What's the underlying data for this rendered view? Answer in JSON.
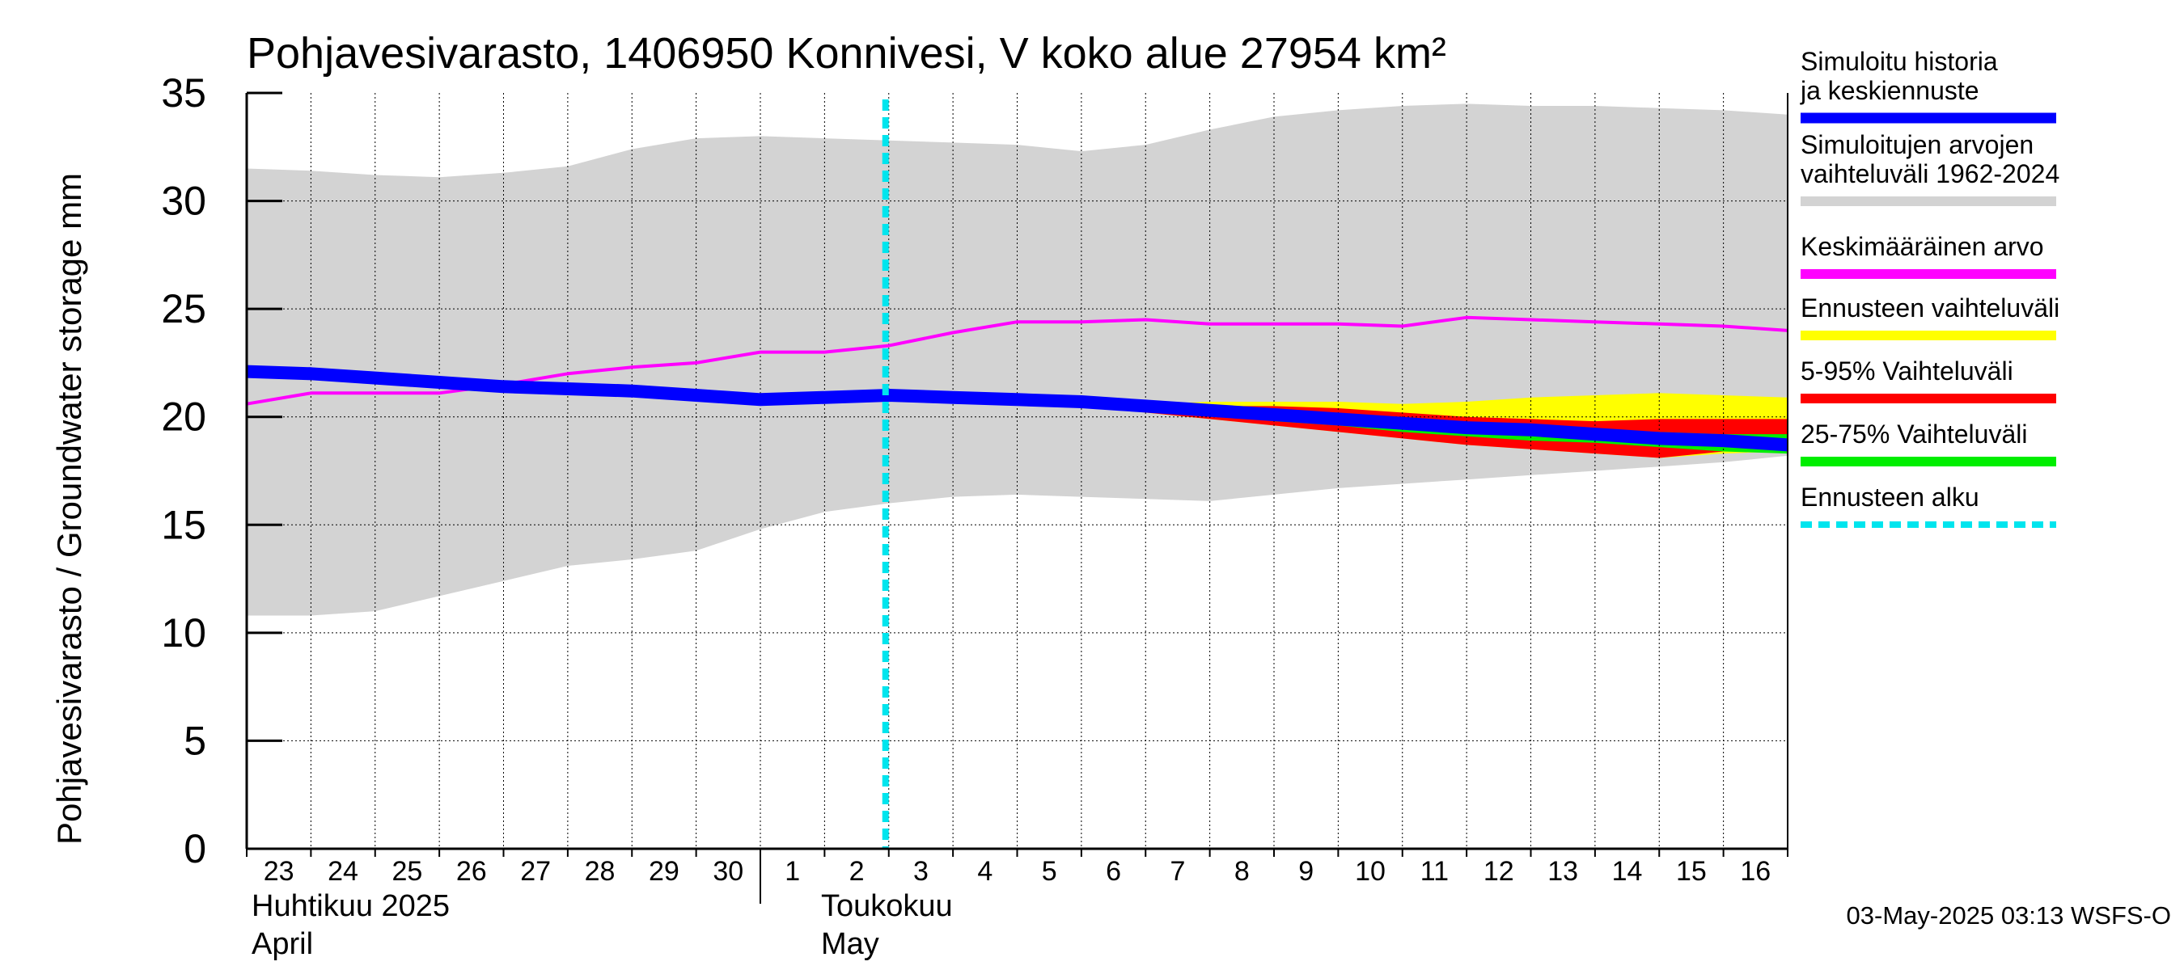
{
  "chart_data": {
    "type": "area",
    "title": "Pohjavesivarasto, 1406950 Konnivesi, V koko alue 27954 km²",
    "ylabel": "Pohjavesivarasto / Groundwater storage   mm",
    "ylim": [
      0,
      35
    ],
    "yticks": [
      "0",
      "5",
      "10",
      "15",
      "20",
      "25",
      "30",
      "35"
    ],
    "x_start": "2025-04-23",
    "x_end": "2025-05-17",
    "xtick_labels": [
      "23",
      "24",
      "25",
      "26",
      "27",
      "28",
      "29",
      "30",
      "1",
      "2",
      "3",
      "4",
      "5",
      "6",
      "7",
      "8",
      "9",
      "10",
      "11",
      "12",
      "13",
      "14",
      "15",
      "16"
    ],
    "month_labels": [
      {
        "line1": "Huhtikuu  2025",
        "line2": "April"
      },
      {
        "line1": "Toukokuu",
        "line2": "May"
      }
    ],
    "grid": true,
    "forecast_start": "2025-05-03",
    "series": [
      {
        "name": "Simuloitujen arvojen vaihteluväli 1962-2024",
        "kind": "band",
        "color": "#d3d3d3",
        "x": [
          "2025-04-23",
          "2025-04-24",
          "2025-04-25",
          "2025-04-26",
          "2025-04-27",
          "2025-04-28",
          "2025-04-29",
          "2025-04-30",
          "2025-05-01",
          "2025-05-02",
          "2025-05-03",
          "2025-05-04",
          "2025-05-05",
          "2025-05-06",
          "2025-05-07",
          "2025-05-08",
          "2025-05-09",
          "2025-05-10",
          "2025-05-11",
          "2025-05-12",
          "2025-05-13",
          "2025-05-14",
          "2025-05-15",
          "2025-05-16",
          "2025-05-17"
        ],
        "low": [
          10.8,
          10.8,
          11.0,
          11.7,
          12.4,
          13.1,
          13.4,
          13.8,
          14.8,
          15.6,
          16.0,
          16.3,
          16.4,
          16.3,
          16.2,
          16.1,
          16.4,
          16.7,
          16.9,
          17.1,
          17.3,
          17.5,
          17.7,
          17.9,
          18.2
        ],
        "high": [
          31.5,
          31.4,
          31.2,
          31.1,
          31.3,
          31.6,
          32.4,
          32.9,
          33.0,
          32.9,
          32.8,
          32.7,
          32.6,
          32.3,
          32.6,
          33.3,
          33.9,
          34.2,
          34.4,
          34.5,
          34.4,
          34.4,
          34.3,
          34.2,
          34.0
        ]
      },
      {
        "name": "Keskimääräinen arvo",
        "kind": "line",
        "color": "#ff00ff",
        "x": [
          "2025-04-23",
          "2025-04-24",
          "2025-04-25",
          "2025-04-26",
          "2025-04-27",
          "2025-04-28",
          "2025-04-29",
          "2025-04-30",
          "2025-05-01",
          "2025-05-02",
          "2025-05-03",
          "2025-05-04",
          "2025-05-05",
          "2025-05-06",
          "2025-05-07",
          "2025-05-08",
          "2025-05-09",
          "2025-05-10",
          "2025-05-11",
          "2025-05-12",
          "2025-05-13",
          "2025-05-14",
          "2025-05-15",
          "2025-05-16",
          "2025-05-17"
        ],
        "values": [
          20.6,
          21.1,
          21.1,
          21.1,
          21.5,
          22.0,
          22.3,
          22.5,
          23.0,
          23.0,
          23.3,
          23.9,
          24.4,
          24.4,
          24.5,
          24.3,
          24.3,
          24.3,
          24.2,
          24.6,
          24.5,
          24.4,
          24.3,
          24.2,
          24.0
        ]
      },
      {
        "name": "Ennusteen vaihteluväli",
        "kind": "band",
        "color": "#ffff00",
        "x": [
          "2025-05-03",
          "2025-05-04",
          "2025-05-05",
          "2025-05-06",
          "2025-05-07",
          "2025-05-08",
          "2025-05-09",
          "2025-05-10",
          "2025-05-11",
          "2025-05-12",
          "2025-05-13",
          "2025-05-14",
          "2025-05-15",
          "2025-05-16",
          "2025-05-17"
        ],
        "low": [
          21.0,
          20.9,
          20.7,
          20.5,
          20.2,
          19.9,
          19.6,
          19.3,
          19.0,
          18.7,
          18.5,
          18.3,
          18.1,
          18.3,
          18.4
        ],
        "high": [
          21.0,
          21.0,
          20.8,
          20.7,
          20.6,
          20.7,
          20.7,
          20.7,
          20.6,
          20.7,
          20.9,
          21.0,
          21.1,
          21.0,
          20.9
        ]
      },
      {
        "name": "5-95% Vaihteluväli",
        "kind": "band",
        "color": "#ff0000",
        "x": [
          "2025-05-03",
          "2025-05-04",
          "2025-05-05",
          "2025-05-06",
          "2025-05-07",
          "2025-05-08",
          "2025-05-09",
          "2025-05-10",
          "2025-05-11",
          "2025-05-12",
          "2025-05-13",
          "2025-05-14",
          "2025-05-15",
          "2025-05-16",
          "2025-05-17"
        ],
        "low": [
          21.0,
          20.9,
          20.7,
          20.5,
          20.2,
          19.9,
          19.6,
          19.3,
          19.0,
          18.7,
          18.5,
          18.3,
          18.1,
          18.4,
          18.5
        ],
        "high": [
          21.0,
          21.0,
          20.8,
          20.7,
          20.5,
          20.5,
          20.5,
          20.4,
          20.2,
          20.0,
          19.9,
          19.8,
          19.9,
          19.9,
          19.9
        ]
      },
      {
        "name": "25-75% Vaihteluväli",
        "kind": "band",
        "color": "#00ee00",
        "x": [
          "2025-05-03",
          "2025-05-04",
          "2025-05-05",
          "2025-05-06",
          "2025-05-07",
          "2025-05-08",
          "2025-05-09",
          "2025-05-10",
          "2025-05-11",
          "2025-05-12",
          "2025-05-13",
          "2025-05-14",
          "2025-05-15",
          "2025-05-16",
          "2025-05-17"
        ],
        "low": [
          21.0,
          20.9,
          20.7,
          20.6,
          20.3,
          20.1,
          19.8,
          19.6,
          19.3,
          19.1,
          18.9,
          18.8,
          18.6,
          18.4,
          18.3
        ],
        "high": [
          21.0,
          21.0,
          20.8,
          20.7,
          20.5,
          20.4,
          20.2,
          20.0,
          19.8,
          19.6,
          19.5,
          19.4,
          19.3,
          19.2,
          19.2
        ]
      },
      {
        "name": "Simuloitu historia ja keskiennuste",
        "kind": "line",
        "color": "#0000ff",
        "x": [
          "2025-04-23",
          "2025-04-24",
          "2025-04-25",
          "2025-04-26",
          "2025-04-27",
          "2025-04-28",
          "2025-04-29",
          "2025-04-30",
          "2025-05-01",
          "2025-05-02",
          "2025-05-03",
          "2025-05-04",
          "2025-05-05",
          "2025-05-06",
          "2025-05-07",
          "2025-05-08",
          "2025-05-09",
          "2025-05-10",
          "2025-05-11",
          "2025-05-12",
          "2025-05-13",
          "2025-05-14",
          "2025-05-15",
          "2025-05-16",
          "2025-05-17"
        ],
        "values": [
          22.1,
          22.0,
          21.8,
          21.6,
          21.4,
          21.3,
          21.2,
          21.0,
          20.8,
          20.9,
          21.0,
          20.9,
          20.8,
          20.7,
          20.5,
          20.3,
          20.1,
          19.9,
          19.7,
          19.5,
          19.4,
          19.2,
          19.0,
          18.9,
          18.7
        ]
      }
    ],
    "legend": {
      "placement": "right",
      "entries": [
        {
          "label": "Simuloitu historia ja keskiennuste",
          "color": "#0000ff",
          "style": "line"
        },
        {
          "label": "Simuloitujen arvojen vaihteluväli 1962-2024",
          "color": "#d3d3d3",
          "style": "line"
        },
        {
          "label": "Keskimääräinen arvo",
          "color": "#ff00ff",
          "style": "line"
        },
        {
          "label": "Ennusteen vaihteluväli",
          "color": "#ffff00",
          "style": "line"
        },
        {
          "label": "5-95% Vaihteluväli",
          "color": "#ff0000",
          "style": "line"
        },
        {
          "label": "25-75% Vaihteluväli",
          "color": "#00ee00",
          "style": "line"
        },
        {
          "label": "Ennusteen alku",
          "color": "#00e5ee",
          "style": "dashed"
        }
      ]
    },
    "footer": "03-May-2025 03:13 WSFS-O",
    "forecast_line_color": "#00e5ee"
  }
}
